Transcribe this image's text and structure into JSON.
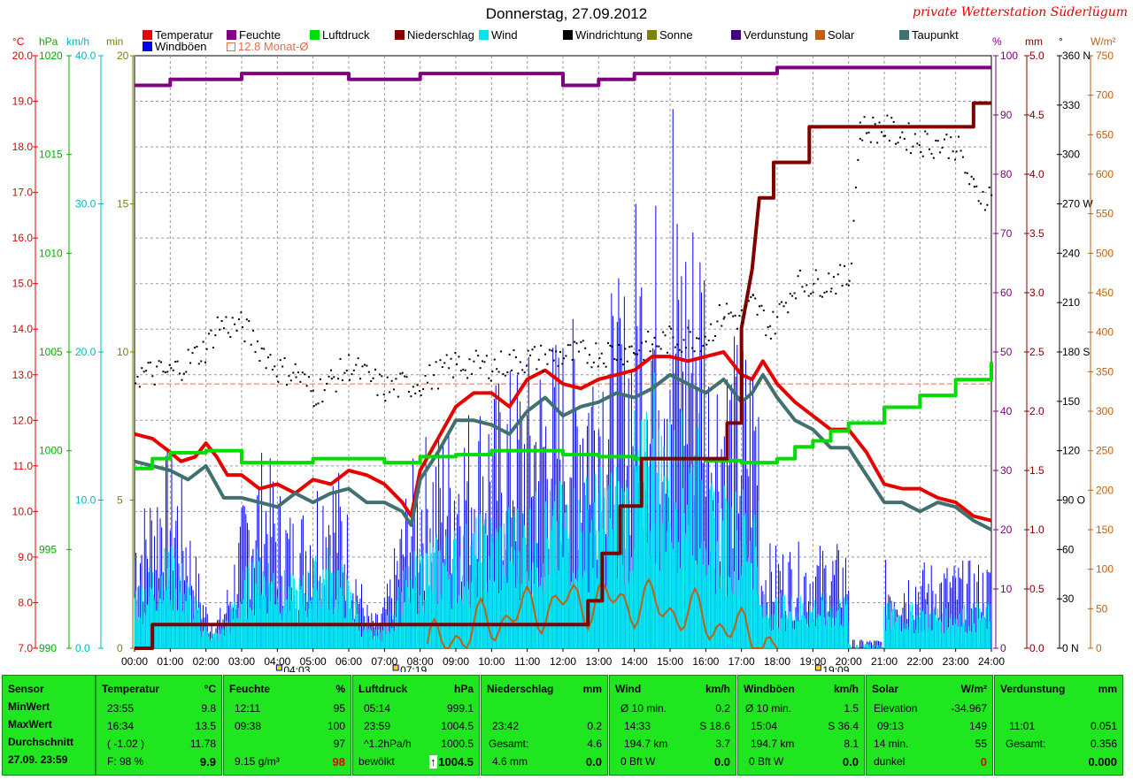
{
  "header": {
    "title": "Donnerstag, 27.09.2012",
    "station": "private Wetterstation Süderlügum"
  },
  "legend": [
    {
      "label": "Temperatur",
      "color": "#e60000"
    },
    {
      "label": "Feuchte",
      "color": "#800080"
    },
    {
      "label": "Luftdruck",
      "color": "#00dd00"
    },
    {
      "label": "Niederschlag",
      "color": "#800000"
    },
    {
      "label": "Wind",
      "color": "#00e5ee"
    },
    {
      "label": "Windrichtung",
      "color": "#000000"
    },
    {
      "label": "Sonne",
      "color": "#808000"
    },
    {
      "label": "Verdunstung",
      "color": "#400080"
    },
    {
      "label": "Solar",
      "color": "#c06010"
    },
    {
      "label": "Taupunkt",
      "color": "#407070"
    },
    {
      "label": "Windböen",
      "color": "#0000ee"
    },
    {
      "label": "12.8 Monat-Ø",
      "color": "#e07050"
    }
  ],
  "axis_units": {
    "temp": "°C",
    "pressure": "hPa",
    "wind": "km/h",
    "sun": "min",
    "humidity": "%",
    "rain": "mm",
    "dir": "°",
    "solar": "W/m²"
  },
  "chart_data": {
    "type": "line",
    "title": "Donnerstag, 27.09.2012",
    "x_ticks": [
      "00:00",
      "01:00",
      "02:00",
      "03:00",
      "04:00",
      "05:00",
      "06:00",
      "07:00",
      "08:00",
      "09:00",
      "10:00",
      "11:00",
      "12:00",
      "13:00",
      "14:00",
      "15:00",
      "16:00",
      "17:00",
      "18:00",
      "19:00",
      "20:00",
      "21:00",
      "22:00",
      "23:00",
      "24:00"
    ],
    "axes": {
      "temp": {
        "range": [
          7.0,
          20.0
        ],
        "ticks": [
          "7.0",
          "8.0",
          "9.0",
          "10.0",
          "11.0",
          "12.0",
          "13.0",
          "14.0",
          "15.0",
          "16.0",
          "17.0",
          "18.0",
          "19.0",
          "20.0"
        ]
      },
      "pressure": {
        "range": [
          990,
          1020
        ],
        "ticks": [
          "990",
          "995",
          "1000",
          "1005",
          "1010",
          "1015",
          "1020"
        ]
      },
      "wind": {
        "range": [
          0,
          40
        ],
        "ticks": [
          "0.0",
          "10.0",
          "20.0",
          "30.0",
          "40.0"
        ]
      },
      "sun": {
        "range": [
          0,
          20
        ],
        "ticks": [
          "0",
          "5",
          "10",
          "15",
          "20"
        ]
      },
      "humidity": {
        "range": [
          0,
          100
        ],
        "ticks": [
          "0",
          "10",
          "20",
          "30",
          "40",
          "50",
          "60",
          "70",
          "80",
          "90",
          "100"
        ]
      },
      "rain": {
        "range": [
          0,
          5
        ],
        "ticks": [
          "0.0",
          "0.5",
          "1.0",
          "1.5",
          "2.0",
          "2.5",
          "3.0",
          "3.5",
          "4.0",
          "4.5",
          "5.0"
        ]
      },
      "dir": {
        "range": [
          0,
          360
        ],
        "ticks": [
          "0 N",
          "30",
          "60",
          "90 O",
          "120",
          "150",
          "180 S",
          "210",
          "240",
          "270 W",
          "300",
          "330",
          "360 N"
        ]
      },
      "solar": {
        "range": [
          0,
          750
        ],
        "ticks": [
          "0",
          "50",
          "100",
          "150",
          "200",
          "250",
          "300",
          "350",
          "400",
          "450",
          "500",
          "550",
          "600",
          "650",
          "700",
          "750"
        ]
      }
    },
    "monthly_avg_temp": 12.8,
    "sun_markers": {
      "sunrise": "04:03",
      "dawn": "07:19",
      "sunset": "19:09"
    },
    "series": [
      {
        "name": "Temperatur",
        "axis": "temp",
        "x": [
          0,
          0.5,
          1,
          1.3,
          1.7,
          2,
          2.3,
          2.6,
          3,
          3.5,
          4,
          4.5,
          5,
          5.5,
          6,
          6.5,
          7,
          7.5,
          7.75,
          8,
          8.5,
          9,
          9.5,
          10,
          10.5,
          11,
          11.5,
          12,
          12.5,
          13,
          13.5,
          14,
          14.5,
          15,
          15.5,
          16,
          16.5,
          17,
          17.3,
          17.6,
          18,
          18.5,
          19,
          19.5,
          20,
          20.5,
          21,
          21.5,
          22,
          22.5,
          23,
          23.5,
          24
        ],
        "values": [
          11.7,
          11.6,
          11.3,
          11.1,
          11.2,
          11.5,
          11.2,
          10.8,
          10.8,
          10.5,
          10.6,
          10.4,
          10.7,
          10.6,
          10.9,
          10.8,
          10.6,
          10.2,
          9.9,
          10.9,
          11.6,
          12.3,
          12.6,
          12.6,
          12.3,
          12.9,
          13.1,
          12.8,
          12.7,
          12.9,
          13.0,
          13.1,
          13.4,
          13.4,
          13.3,
          13.4,
          13.5,
          13.0,
          12.9,
          13.3,
          12.8,
          12.4,
          12.1,
          11.8,
          11.8,
          11.3,
          10.6,
          10.5,
          10.5,
          10.3,
          10.2,
          9.9,
          9.8
        ]
      },
      {
        "name": "Taupunkt",
        "axis": "temp",
        "x": [
          0,
          0.5,
          1,
          1.5,
          2,
          2.5,
          3,
          3.5,
          4,
          4.5,
          5,
          5.5,
          6,
          6.5,
          7,
          7.5,
          7.75,
          8,
          8.5,
          9,
          9.5,
          10,
          10.5,
          11,
          11.5,
          12,
          12.5,
          13,
          13.5,
          14,
          14.5,
          15,
          15.5,
          16,
          16.5,
          17,
          17.3,
          17.6,
          18,
          18.5,
          19,
          19.5,
          20,
          20.5,
          21,
          21.5,
          22,
          22.5,
          23,
          23.5,
          24
        ],
        "values": [
          11.1,
          11.0,
          10.9,
          10.7,
          11.0,
          10.3,
          10.3,
          10.2,
          10.1,
          10.4,
          10.2,
          10.4,
          10.5,
          10.2,
          10.2,
          10.0,
          9.7,
          10.7,
          11.3,
          12.0,
          12.0,
          11.9,
          11.7,
          12.2,
          12.5,
          12.1,
          12.3,
          12.4,
          12.6,
          12.5,
          12.7,
          13.0,
          12.8,
          12.6,
          12.9,
          12.4,
          12.6,
          13.0,
          12.5,
          12.0,
          11.8,
          11.4,
          11.4,
          10.8,
          10.2,
          10.2,
          10.0,
          10.2,
          10.1,
          9.8,
          9.6
        ]
      },
      {
        "name": "Feuchte",
        "axis": "humidity",
        "x": [
          0,
          1,
          2,
          3,
          4,
          5,
          6,
          7,
          8,
          9,
          10,
          11,
          12,
          13,
          14,
          15,
          16,
          17,
          18,
          19,
          20,
          21,
          22,
          23,
          24
        ],
        "values": [
          95,
          96,
          96,
          97,
          97,
          97,
          96,
          96,
          97,
          97,
          97,
          97,
          95,
          96,
          97,
          97,
          97,
          97,
          98,
          98,
          98,
          98,
          98,
          98,
          98
        ]
      },
      {
        "name": "Luftdruck",
        "axis": "pressure",
        "x": [
          0,
          0.5,
          1,
          2,
          3,
          4,
          5,
          6,
          7,
          8,
          9,
          10,
          11,
          12,
          13,
          14,
          15,
          16,
          17,
          18,
          18.5,
          19,
          19.5,
          20,
          21,
          22,
          23,
          24
        ],
        "values": [
          999.1,
          999.6,
          999.9,
          1000.0,
          999.4,
          999.4,
          999.6,
          999.6,
          999.4,
          999.7,
          999.8,
          1000.0,
          1000.0,
          999.8,
          999.7,
          999.6,
          999.6,
          999.5,
          999.4,
          999.6,
          1000.2,
          1000.5,
          1001.0,
          1001.4,
          1002.2,
          1002.8,
          1003.6,
          1004.5
        ]
      },
      {
        "name": "Niederschlag",
        "axis": "rain",
        "x": [
          0,
          0.5,
          0.5,
          12.7,
          12.7,
          13.1,
          13.1,
          13.6,
          13.6,
          14.2,
          14.2,
          14.6,
          14.6,
          16.6,
          16.6,
          17.0,
          17.0,
          17.3,
          17.5,
          17.9,
          17.9,
          18.9,
          18.9,
          19.9,
          19.9,
          23.5,
          23.5,
          24
        ],
        "values": [
          0,
          0,
          0.2,
          0.2,
          0.4,
          0.4,
          0.8,
          0.8,
          1.2,
          1.2,
          1.6,
          1.6,
          1.6,
          1.6,
          1.9,
          1.9,
          2.7,
          3.2,
          3.8,
          3.8,
          4.1,
          4.1,
          4.4,
          4.4,
          4.4,
          4.4,
          4.6,
          4.6
        ]
      },
      {
        "name": "Windrichtung",
        "axis": "dir",
        "x": [
          0,
          1,
          2,
          2.3,
          3,
          4,
          4.5,
          5,
          5.5,
          6,
          7,
          8,
          9,
          10,
          11,
          12,
          13,
          14,
          15,
          16,
          16.5,
          17,
          17.3,
          17.8,
          18.5,
          19,
          19.5,
          20,
          20.3,
          21,
          22,
          23,
          23.5,
          24
        ],
        "values": [
          167,
          168,
          183,
          197,
          196,
          170,
          168,
          155,
          163,
          172,
          158,
          162,
          173,
          172,
          176,
          178,
          180,
          182,
          188,
          190,
          205,
          200,
          210,
          195,
          222,
          222,
          224,
          225,
          316,
          316,
          308,
          306,
          277,
          275
        ]
      }
    ],
    "wind_peaks_kmh": {
      "gust_max": 36.4,
      "wind_max": 18.6
    }
  },
  "stats": {
    "sensor": {
      "title": "Sensor",
      "rows": [
        "MinWert",
        "MaxWert",
        "Durchschnitt",
        "27.09. 23:59"
      ]
    },
    "temperatur": {
      "title": "Temperatur",
      "unit": "°C",
      "min_t": "23:55",
      "min_v": "9.8",
      "max_t": "16:34",
      "max_v": "13.5",
      "avg_t": "( -1.02 )",
      "avg_v": "11.78",
      "cur_l": "F: 98 %",
      "cur_v": "9.9"
    },
    "feuchte": {
      "title": "Feuchte",
      "unit": "%",
      "min_t": "12:11",
      "min_v": "95",
      "max_t": "09:38",
      "max_v": "100",
      "avg_v": "97",
      "cur_l": "9.15 g/m³",
      "cur_v": "98"
    },
    "luftdruck": {
      "title": "Luftdruck",
      "unit": "hPa",
      "min_t": "05:14",
      "min_v": "999.1",
      "max_t": "23:59",
      "max_v": "1004.5",
      "avg_t": "^1.2hPa/h",
      "avg_v": "1000.5",
      "cur_l": "bewölkt",
      "cur_arrow": "↑",
      "cur_v": "1004.5"
    },
    "niederschlag": {
      "title": "Niederschlag",
      "unit": "mm",
      "max_t": "23:42",
      "max_v": "0.2",
      "avg_t": "Gesamt:",
      "avg_v": "4.6",
      "cur_l": "4.6 mm",
      "cur_v": "0.0"
    },
    "wind": {
      "title": "Wind",
      "unit": "km/h",
      "min_t": "Ø 10 min.",
      "min_v": "0.2",
      "max_t": "14:33",
      "max_v": "S 18.6",
      "avg_t": "194.7 km",
      "avg_v": "3.7",
      "cur_l": "0 Bft W",
      "cur_v": "0.0"
    },
    "windboeen": {
      "title": "Windböen",
      "unit": "km/h",
      "min_t": "Ø 10 min.",
      "min_v": "1.5",
      "max_t": "15:04",
      "max_v": "S 36.4",
      "avg_t": "194.7 km",
      "avg_v": "8.1",
      "cur_l": "0 Bft W",
      "cur_v": "0.0"
    },
    "solar": {
      "title": "Solar",
      "unit": "W/m²",
      "min_t": "Elevation",
      "min_v": "-34.967",
      "max_t": "09:13",
      "max_v": "149",
      "avg_t": "14 min.",
      "avg_v": "55",
      "cur_l": "dunkel",
      "cur_v": "0"
    },
    "verdunstung": {
      "title": "Verdunstung",
      "unit": "mm",
      "max_t": "11:01",
      "max_v": "0.051",
      "avg_t": "Gesamt:",
      "avg_v": "0.356",
      "cur_v": "0.000"
    }
  }
}
